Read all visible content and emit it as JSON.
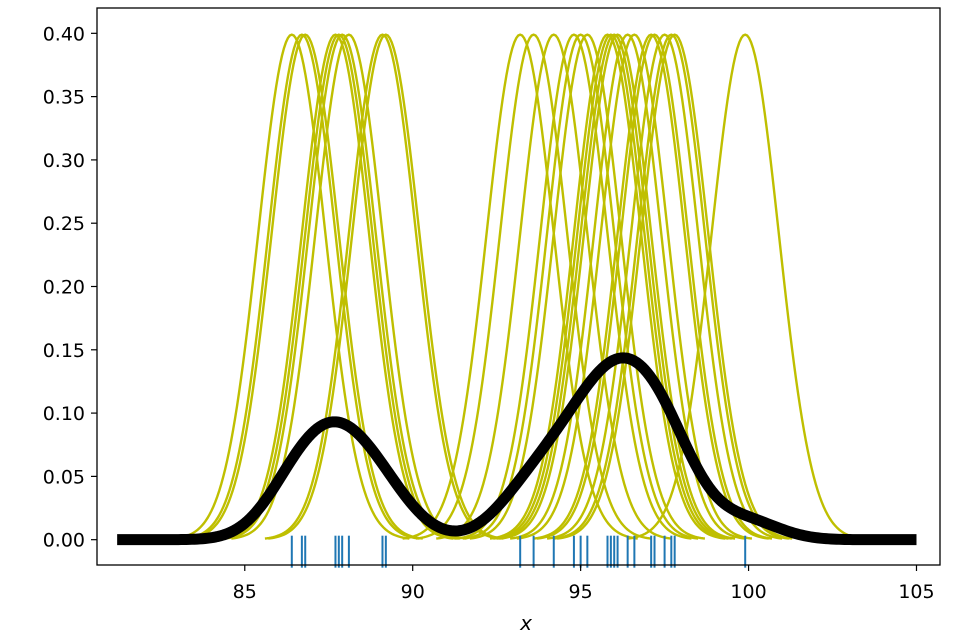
{
  "chart_data": {
    "type": "line",
    "title": "",
    "xlabel": "x",
    "ylabel": "",
    "xlim": [
      80.6,
      105.7
    ],
    "ylim": [
      -0.02,
      0.42
    ],
    "x_ticks": [
      85,
      90,
      95,
      100,
      105
    ],
    "y_ticks": [
      0.0,
      0.05,
      0.1,
      0.15,
      0.2,
      0.25,
      0.3,
      0.35,
      0.4
    ],
    "x_tick_labels": [
      "85",
      "90",
      "95",
      "100",
      "105"
    ],
    "y_tick_labels": [
      "0.00",
      "0.05",
      "0.10",
      "0.15",
      "0.20",
      "0.25",
      "0.30",
      "0.35",
      "0.40"
    ],
    "bandwidth": 1.0,
    "x_range": [
      81.2,
      105.0
    ],
    "data_points": [
      86.4,
      86.7,
      86.8,
      87.7,
      87.8,
      87.9,
      88.1,
      89.1,
      89.2,
      93.2,
      93.6,
      94.2,
      94.8,
      95.0,
      95.2,
      95.8,
      95.9,
      96.0,
      96.1,
      96.4,
      96.6,
      97.1,
      97.2,
      97.5,
      97.7,
      97.8,
      99.9
    ],
    "kernel_color": "#bfbf00",
    "rug_color": "#1f77b4",
    "kde_color": "#000000"
  }
}
